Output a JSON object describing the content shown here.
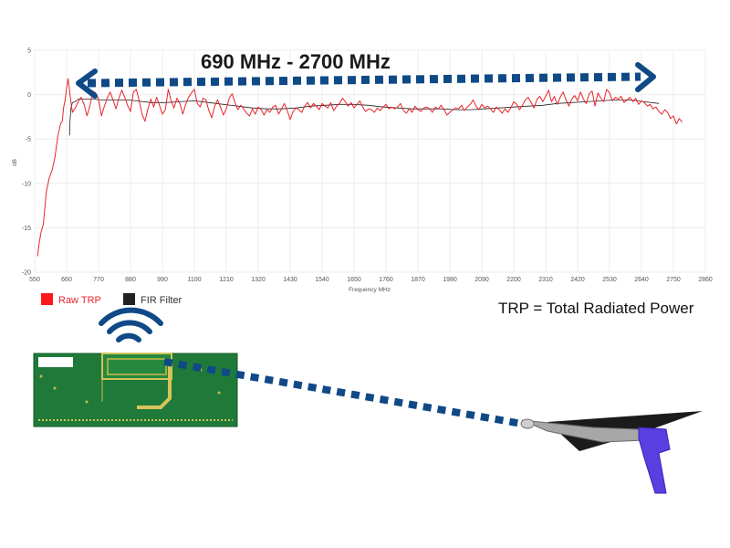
{
  "annotation": {
    "range_label": "690 MHz - 2700 MHz",
    "trp_note": "TRP = Total Radiated Power",
    "arrow_color": "#0f4a86"
  },
  "icons": [
    "wifi-signal-icon",
    "pcb-antenna-board",
    "rf-probe-gun-icon"
  ],
  "chart_data": {
    "type": "line",
    "title": "",
    "xlabel": "Frequency MHz",
    "ylabel": "dB",
    "xlim": [
      550,
      2860
    ],
    "ylim": [
      -20,
      5
    ],
    "x_ticks": [
      "550",
      "660",
      "770",
      "880",
      "990",
      "1100",
      "1210",
      "1320",
      "1430",
      "1540",
      "1650",
      "1760",
      "1870",
      "1980",
      "2090",
      "2200",
      "2310",
      "2420",
      "2530",
      "2640",
      "2750",
      "2860"
    ],
    "y_ticks": [
      "5",
      "0",
      "-5",
      "-10",
      "-15",
      "-20"
    ],
    "grid": true,
    "legend_placement": "bottom-left",
    "series": [
      {
        "name": "Raw TRP",
        "color": "#e8242b",
        "x": [
          560,
          565,
          572,
          580,
          590,
          600,
          610,
          620,
          630,
          640,
          645,
          650,
          655,
          660,
          665,
          670,
          675,
          680,
          690,
          700,
          710,
          720,
          730,
          740,
          750,
          760,
          770,
          780,
          790,
          800,
          810,
          820,
          830,
          840,
          850,
          860,
          870,
          880,
          890,
          900,
          910,
          920,
          930,
          940,
          950,
          960,
          970,
          980,
          990,
          1000,
          1010,
          1020,
          1030,
          1040,
          1050,
          1060,
          1070,
          1080,
          1090,
          1100,
          1110,
          1120,
          1130,
          1140,
          1150,
          1160,
          1170,
          1180,
          1190,
          1200,
          1210,
          1220,
          1230,
          1240,
          1250,
          1260,
          1270,
          1280,
          1290,
          1300,
          1310,
          1320,
          1330,
          1340,
          1350,
          1360,
          1370,
          1380,
          1390,
          1400,
          1410,
          1420,
          1430,
          1440,
          1450,
          1460,
          1470,
          1480,
          1490,
          1500,
          1510,
          1520,
          1530,
          1540,
          1550,
          1560,
          1570,
          1580,
          1590,
          1600,
          1610,
          1620,
          1630,
          1640,
          1650,
          1660,
          1670,
          1680,
          1690,
          1700,
          1710,
          1720,
          1730,
          1740,
          1750,
          1760,
          1770,
          1780,
          1790,
          1800,
          1810,
          1820,
          1830,
          1840,
          1850,
          1860,
          1870,
          1880,
          1890,
          1900,
          1910,
          1920,
          1930,
          1940,
          1950,
          1960,
          1970,
          1980,
          1990,
          2000,
          2010,
          2020,
          2030,
          2040,
          2050,
          2060,
          2070,
          2080,
          2090,
          2100,
          2110,
          2120,
          2130,
          2140,
          2150,
          2160,
          2170,
          2180,
          2190,
          2200,
          2210,
          2220,
          2230,
          2240,
          2250,
          2260,
          2270,
          2280,
          2290,
          2300,
          2310,
          2320,
          2330,
          2340,
          2350,
          2360,
          2370,
          2380,
          2390,
          2400,
          2410,
          2420,
          2430,
          2440,
          2450,
          2460,
          2470,
          2480,
          2490,
          2500,
          2510,
          2520,
          2530,
          2540,
          2550,
          2560,
          2570,
          2580,
          2590,
          2600,
          2610,
          2620,
          2630,
          2640,
          2650,
          2660,
          2670,
          2680,
          2690,
          2700,
          2710,
          2720,
          2730,
          2740,
          2750,
          2760,
          2770,
          2780
        ],
        "y": [
          -18.2,
          -16.8,
          -15.5,
          -14.6,
          -11.0,
          -9.4,
          -8.5,
          -7.0,
          -4.6,
          -3.2,
          -3.0,
          -1.4,
          -0.6,
          0.8,
          1.8,
          0.5,
          -0.9,
          -2.0,
          -1.5,
          -0.8,
          -0.3,
          -1.1,
          -2.4,
          -1.3,
          0.4,
          0.2,
          -0.5,
          -2.4,
          -1.3,
          -0.4,
          0.3,
          -0.6,
          -1.6,
          -0.4,
          0.5,
          -0.3,
          -1.2,
          -1.9,
          0.3,
          0.6,
          -0.7,
          -2.2,
          -3.0,
          -1.6,
          -0.5,
          -1.4,
          -0.3,
          -1.2,
          -2.2,
          -1.7,
          0.6,
          -0.7,
          -1.5,
          -0.4,
          -1.0,
          -2.2,
          -1.1,
          -0.3,
          0.2,
          0.6,
          -1.0,
          -1.4,
          -0.4,
          -0.6,
          -1.8,
          -2.6,
          -1.3,
          -0.6,
          -1.4,
          -2.3,
          -1.6,
          -0.4,
          0.1,
          -0.9,
          -1.7,
          -1.2,
          -1.6,
          -2.1,
          -2.4,
          -1.6,
          -2.2,
          -1.4,
          -1.7,
          -2.3,
          -1.7,
          -2.0,
          -1.4,
          -1.2,
          -2.2,
          -1.6,
          -1.0,
          -1.8,
          -2.8,
          -1.9,
          -1.5,
          -1.7,
          -2.0,
          -1.3,
          -0.9,
          -1.5,
          -1.0,
          -1.3,
          -1.7,
          -1.0,
          -1.3,
          -1.5,
          -0.9,
          -1.8,
          -1.3,
          -1.0,
          -0.4,
          -0.8,
          -1.3,
          -0.9,
          -1.5,
          -1.1,
          -0.7,
          -1.4,
          -1.9,
          -1.6,
          -1.7,
          -2.0,
          -1.5,
          -1.8,
          -1.4,
          -1.1,
          -1.6,
          -1.4,
          -1.6,
          -1.4,
          -1.0,
          -1.8,
          -2.1,
          -1.6,
          -2.0,
          -1.3,
          -1.7,
          -1.9,
          -1.5,
          -1.4,
          -1.6,
          -2.0,
          -1.4,
          -1.6,
          -1.2,
          -1.7,
          -2.3,
          -2.0,
          -1.7,
          -1.5,
          -1.6,
          -1.2,
          -1.8,
          -1.4,
          -1.1,
          -0.6,
          -1.3,
          -1.7,
          -1.1,
          -1.5,
          -1.3,
          -1.6,
          -2.0,
          -1.4,
          -1.7,
          -2.1,
          -1.6,
          -2.0,
          -1.5,
          -0.8,
          -1.1,
          -1.7,
          -1.2,
          -0.6,
          -0.3,
          -0.9,
          -1.5,
          -0.5,
          -0.2,
          -0.8,
          -0.2,
          0.5,
          -0.8,
          -0.2,
          -1.1,
          -0.3,
          0.3,
          -0.6,
          -1.3,
          -0.5,
          -0.1,
          -0.7,
          0.3,
          -0.5,
          -1.0,
          0.1,
          0.4,
          -1.3,
          0.2,
          -0.4,
          -0.8,
          0.6,
          0.2,
          -0.7,
          -0.3,
          -0.5,
          -0.2,
          -0.9,
          -0.6,
          -0.3,
          -0.8,
          -0.4,
          -1.1,
          -0.7,
          -0.9,
          -1.3,
          -1.1,
          -1.6,
          -1.4,
          -1.9,
          -2.2,
          -1.7,
          -2.0,
          -2.7,
          -2.4,
          -3.3,
          -2.7,
          -3.1
        ]
      },
      {
        "name": "FIR Filter",
        "color": "#222222",
        "x": [
          670,
          672,
          675,
          680,
          690,
          700,
          720,
          750,
          780,
          810,
          840,
          870,
          900,
          950,
          1000,
          1050,
          1100,
          1150,
          1200,
          1250,
          1300,
          1350,
          1400,
          1450,
          1500,
          1550,
          1600,
          1650,
          1700,
          1750,
          1800,
          1850,
          1900,
          1950,
          2000,
          2050,
          2100,
          2150,
          2200,
          2250,
          2300,
          2350,
          2400,
          2450,
          2500,
          2550,
          2600,
          2650,
          2700
        ],
        "y": [
          -4.6,
          -2.8,
          -1.5,
          -0.9,
          -0.8,
          -0.5,
          -0.5,
          -0.5,
          -0.6,
          -0.6,
          -0.6,
          -0.6,
          -0.7,
          -0.9,
          -0.9,
          -0.8,
          -0.7,
          -0.9,
          -1.1,
          -1.3,
          -1.5,
          -1.6,
          -1.6,
          -1.5,
          -1.3,
          -1.2,
          -1.1,
          -1.1,
          -1.2,
          -1.4,
          -1.5,
          -1.6,
          -1.6,
          -1.6,
          -1.7,
          -1.7,
          -1.6,
          -1.5,
          -1.4,
          -1.3,
          -1.2,
          -1.0,
          -0.9,
          -0.8,
          -0.7,
          -0.6,
          -0.6,
          -0.8,
          -1.0
        ]
      }
    ]
  }
}
